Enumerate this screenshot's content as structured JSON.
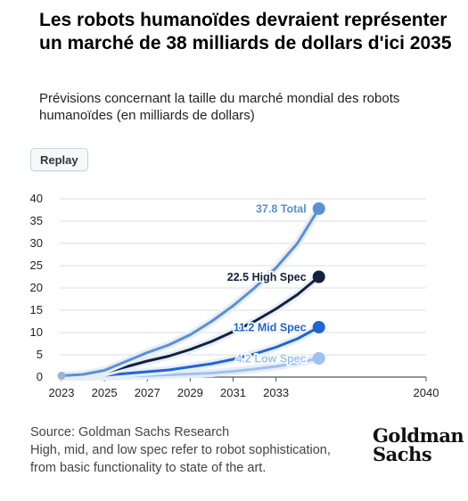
{
  "header": {
    "title": "Les robots humanoïdes devraient représenter un marché de 38 milliards de dollars d'ici 2035",
    "subtitle": "Prévisions concernant la taille du marché mondial des robots humanoïdes (en milliards de dollars)"
  },
  "controls": {
    "replay_label": "Replay"
  },
  "footer": {
    "source": "Source: Goldman Sachs Research",
    "note_line1": "High, mid, and low spec refer to robot sophistication,",
    "note_line2": "from basic functionality to state of the art.",
    "logo_line1": "Goldman",
    "logo_line2": "Sachs"
  },
  "chart_data": {
    "type": "line",
    "xlim": [
      2023,
      2040
    ],
    "ylim": [
      0,
      40
    ],
    "x_ticks": [
      "2023",
      "2025",
      "2027",
      "2029",
      "2031",
      "2033",
      "2040"
    ],
    "y_ticks": [
      "0",
      "5",
      "10",
      "15",
      "20",
      "25",
      "30",
      "35",
      "40"
    ],
    "grid": true,
    "x": [
      2023,
      2024,
      2025,
      2026,
      2027,
      2028,
      2029,
      2030,
      2031,
      2032,
      2033,
      2034,
      2035
    ],
    "series": [
      {
        "label": "37.8 Total",
        "color": "#5b8fd8",
        "values": [
          0.3,
          0.6,
          1.5,
          3.5,
          5.5,
          7.2,
          9.5,
          12.5,
          16.0,
          20.0,
          24.5,
          30.0,
          37.8
        ]
      },
      {
        "label": "22.5 High Spec",
        "color": "#14213d",
        "values": [
          0.2,
          0.4,
          1.0,
          2.3,
          3.6,
          4.7,
          6.2,
          8.0,
          10.2,
          12.5,
          15.3,
          18.5,
          22.5
        ]
      },
      {
        "label": "11.2 Mid Spec",
        "color": "#1f66d1",
        "values": [
          0.1,
          0.2,
          0.4,
          0.8,
          1.2,
          1.6,
          2.3,
          3.0,
          4.0,
          5.2,
          6.7,
          8.6,
          11.2
        ]
      },
      {
        "label": "4.2 Low Spec",
        "color": "#9cc2f0",
        "values": [
          0.05,
          0.1,
          0.15,
          0.25,
          0.35,
          0.5,
          0.7,
          0.9,
          1.3,
          1.8,
          2.4,
          3.2,
          4.2
        ]
      }
    ]
  }
}
